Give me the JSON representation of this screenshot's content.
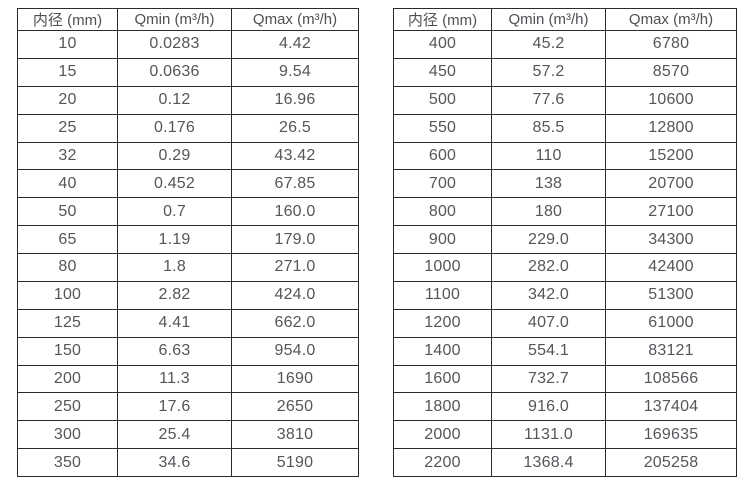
{
  "page": {
    "background": "#ffffff",
    "text_color": "#55555b",
    "border_color": "#2b2b2b"
  },
  "tables": [
    {
      "name": "small-diameter-flow-table",
      "header": [
        "内径 (mm)",
        "Qmin (m³/h)",
        "Qmax (m³/h)"
      ],
      "rows": [
        [
          "10",
          "0.0283",
          "4.42"
        ],
        [
          "15",
          "0.0636",
          "9.54"
        ],
        [
          "20",
          "0.12",
          "16.96"
        ],
        [
          "25",
          "0.176",
          "26.5"
        ],
        [
          "32",
          "0.29",
          "43.42"
        ],
        [
          "40",
          "0.452",
          "67.85"
        ],
        [
          "50",
          "0.7",
          "160.0"
        ],
        [
          "65",
          "1.19",
          "179.0"
        ],
        [
          "80",
          "1.8",
          "271.0"
        ],
        [
          "100",
          "2.82",
          "424.0"
        ],
        [
          "125",
          "4.41",
          "662.0"
        ],
        [
          "150",
          "6.63",
          "954.0"
        ],
        [
          "200",
          "11.3",
          "1690"
        ],
        [
          "250",
          "17.6",
          "2650"
        ],
        [
          "300",
          "25.4",
          "3810"
        ],
        [
          "350",
          "34.6",
          "5190"
        ]
      ]
    },
    {
      "name": "large-diameter-flow-table",
      "header": [
        "内径 (mm)",
        "Qmin (m³/h)",
        "Qmax (m³/h)"
      ],
      "rows": [
        [
          "400",
          "45.2",
          "6780"
        ],
        [
          "450",
          "57.2",
          "8570"
        ],
        [
          "500",
          "77.6",
          "10600"
        ],
        [
          "550",
          "85.5",
          "12800"
        ],
        [
          "600",
          "110",
          "15200"
        ],
        [
          "700",
          "138",
          "20700"
        ],
        [
          "800",
          "180",
          "27100"
        ],
        [
          "900",
          "229.0",
          "34300"
        ],
        [
          "1000",
          "282.0",
          "42400"
        ],
        [
          "1100",
          "342.0",
          "51300"
        ],
        [
          "1200",
          "407.0",
          "61000"
        ],
        [
          "1400",
          "554.1",
          "83121"
        ],
        [
          "1600",
          "732.7",
          "108566"
        ],
        [
          "1800",
          "916.0",
          "137404"
        ],
        [
          "2000",
          "1131.0",
          "169635"
        ],
        [
          "2200",
          "1368.4",
          "205258"
        ]
      ]
    }
  ]
}
